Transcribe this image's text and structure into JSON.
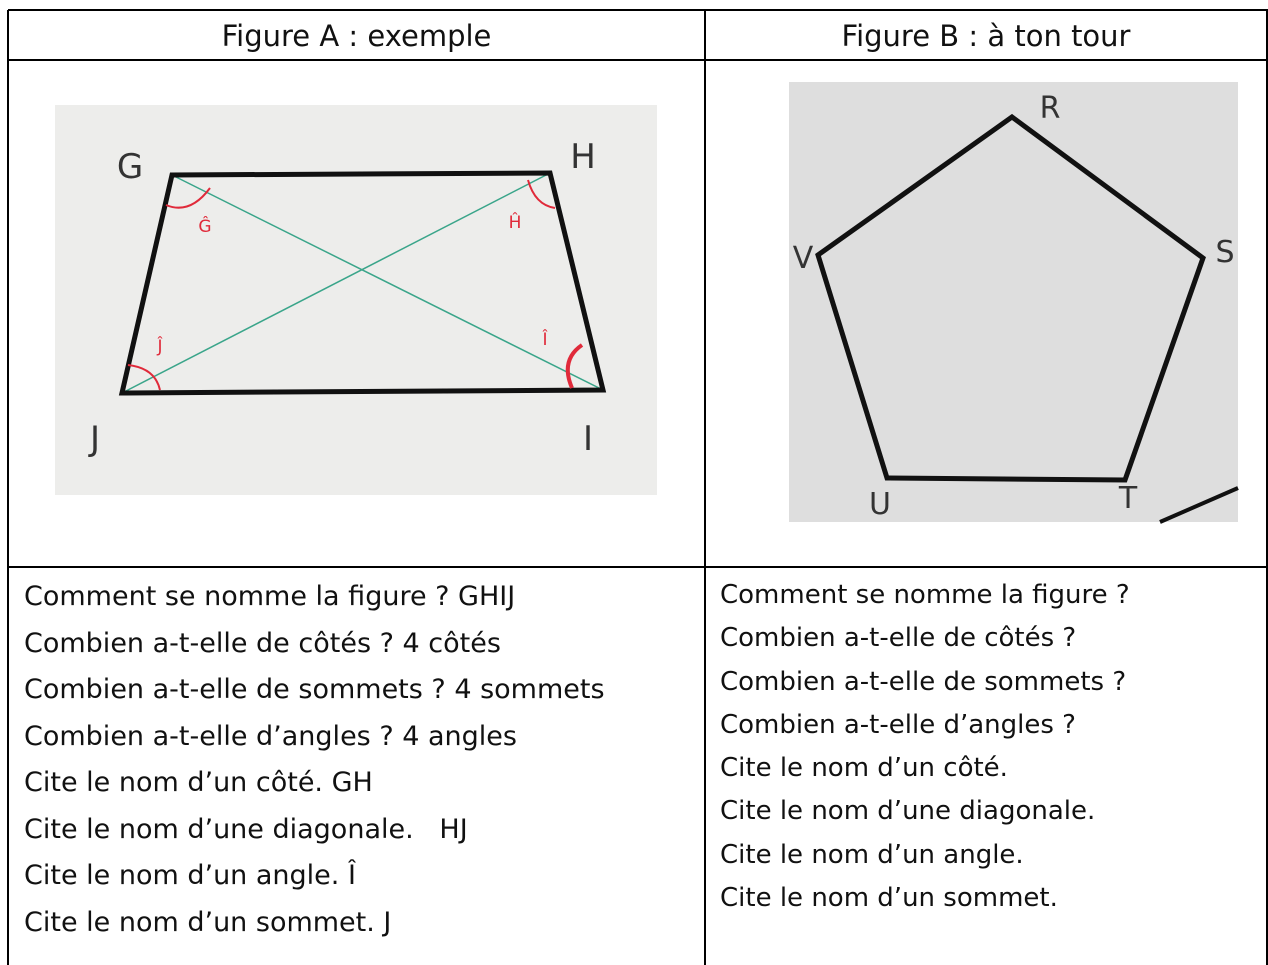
{
  "table": {
    "headers": [
      "Figure A : exemple",
      "Figure B : à ton tour"
    ],
    "figure_a": {
      "vertices": [
        "G",
        "H",
        "I",
        "J"
      ],
      "angles": [
        "Ĝ",
        "Ĥ",
        "Î",
        "Ĵ"
      ]
    },
    "figure_b": {
      "vertices": [
        "R",
        "S",
        "T",
        "U",
        "V"
      ]
    },
    "questions_a": [
      "Comment se nomme la figure ? GHIJ",
      "Combien a-t-elle de côtés ? 4 côtés",
      "Combien a-t-elle de sommets ? 4 sommets",
      "Combien a-t-elle d’angles ? 4 angles",
      "Cite le nom d’un côté. GH",
      "Cite le nom d’une diagonale.   HJ",
      "Cite le nom d’un angle. Î",
      "Cite le nom d’un sommet. J"
    ],
    "questions_b": [
      "Comment se nomme la figure ?",
      "Combien a-t-elle de côtés ?",
      "Combien a-t-elle de sommets ?",
      "Combien a-t-elle d’angles ?",
      "Cite le nom d’un côté.",
      "Cite le nom d’une diagonale.",
      "Cite le nom d’un angle.",
      "Cite le nom d’un sommet."
    ]
  }
}
